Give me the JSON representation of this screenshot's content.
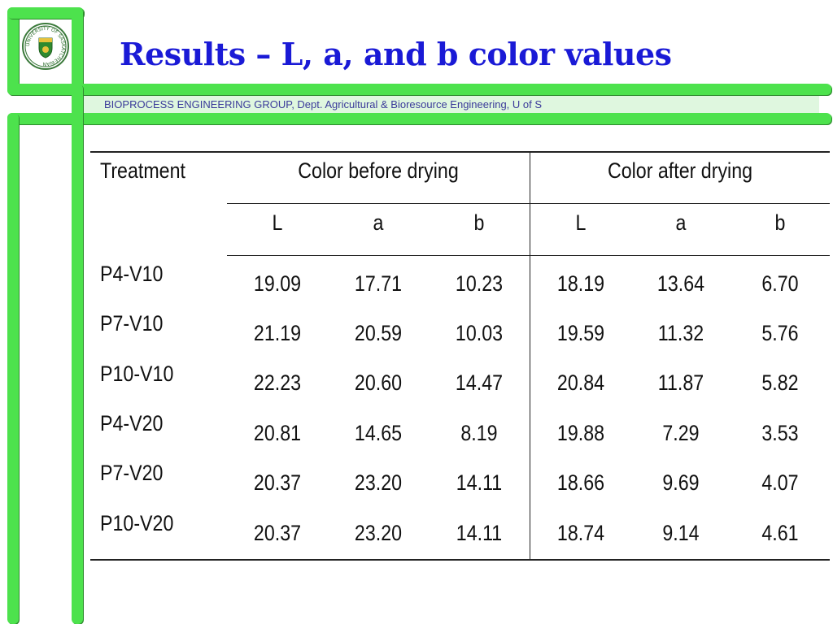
{
  "slide": {
    "title": "Results – L, a, and b color values",
    "subtitle": "BIOPROCESS ENGINEERING GROUP, Dept. Agricultural & Bioresource Engineering, U of S"
  },
  "logo": {
    "text": "UNIVERSITY OF SASKATCHEWAN",
    "icon": "university-crest"
  },
  "colors": {
    "frame_green": "#4de24d",
    "title_blue": "#1a1ad6",
    "subtitle_text": "#3a3a9a"
  },
  "table": {
    "header_treatment": "Treatment",
    "group_before": "Color before drying",
    "group_after": "Color after drying",
    "subheaders": [
      "L",
      "a",
      "b",
      "L",
      "a",
      "b"
    ],
    "rows": [
      {
        "treatment": "P4-V10",
        "values": [
          "19.09",
          "17.71",
          "10.23",
          "18.19",
          "13.64",
          "6.70"
        ]
      },
      {
        "treatment": "P7-V10",
        "values": [
          "21.19",
          "20.59",
          "10.03",
          "19.59",
          "11.32",
          "5.76"
        ]
      },
      {
        "treatment": "P10-V10",
        "values": [
          "22.23",
          "20.60",
          "14.47",
          "20.84",
          "11.87",
          "5.82"
        ]
      },
      {
        "treatment": "P4-V20",
        "values": [
          "20.81",
          "14.65",
          "8.19",
          "19.88",
          "7.29",
          "3.53"
        ]
      },
      {
        "treatment": "P7-V20",
        "values": [
          "20.37",
          "23.20",
          "14.11",
          "18.66",
          "9.69",
          "4.07"
        ]
      },
      {
        "treatment": "P10-V20",
        "values": [
          "20.37",
          "23.20",
          "14.11",
          "18.74",
          "9.14",
          "4.61"
        ]
      }
    ]
  }
}
